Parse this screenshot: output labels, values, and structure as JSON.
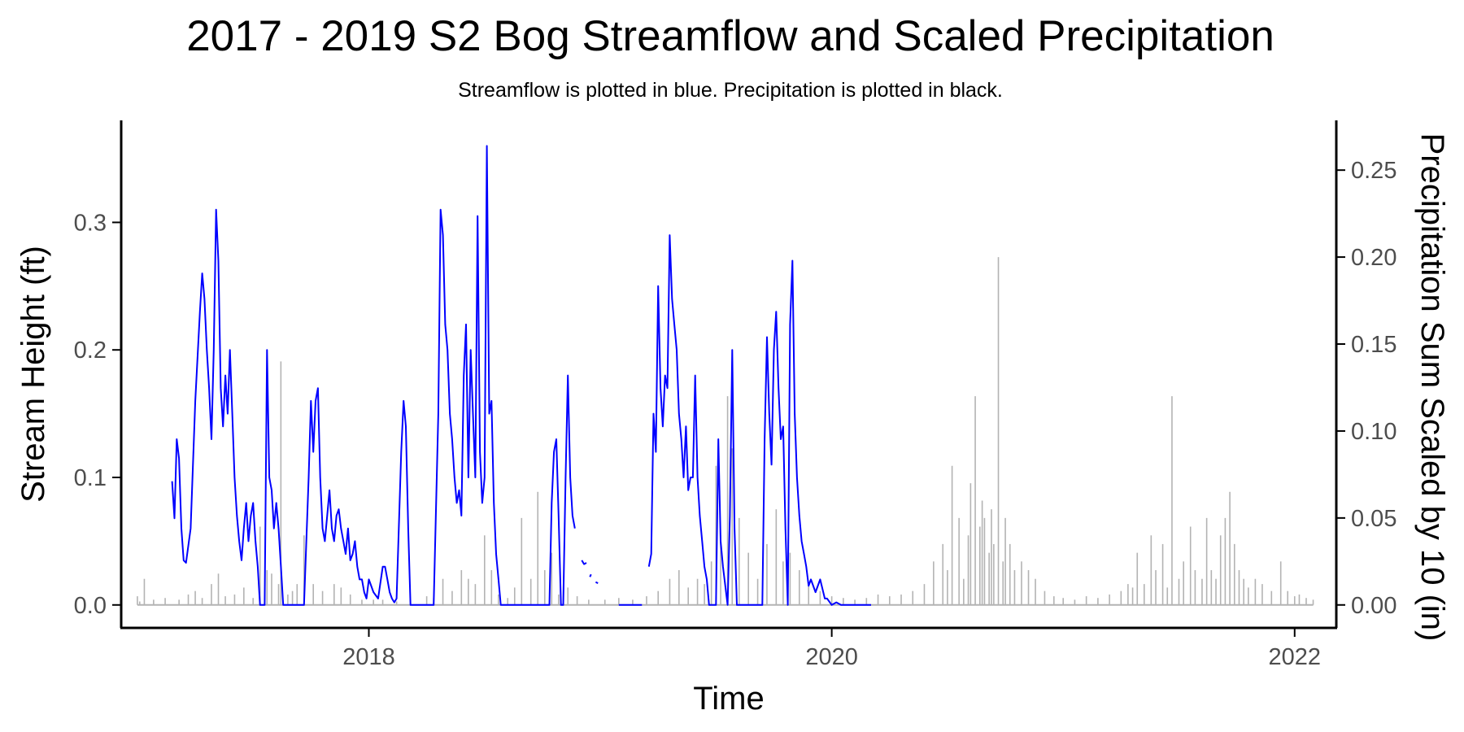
{
  "chart_data": {
    "type": "line",
    "title": "2017 - 2019 S2 Bog Streamflow and Scaled Precipitation",
    "subtitle": "Streamflow is plotted in blue. Precipitation is plotted in black.",
    "xlabel": "Time",
    "ylabel": "Stream Height (ft)",
    "y2label": "Precipitation Sum Scaled by 10 (in)",
    "xlim": [
      2016.93,
      2022.18
    ],
    "ylim": [
      -0.018,
      0.38
    ],
    "y2lim": [
      -0.0132,
      0.2786
    ],
    "x_ticks": [
      2018,
      2020,
      2022
    ],
    "x_tick_labels": [
      "2018",
      "2020",
      "2022"
    ],
    "y_ticks": [
      0.0,
      0.1,
      0.2,
      0.3
    ],
    "y_tick_labels": [
      "0.0",
      "0.1",
      "0.2",
      "0.3"
    ],
    "y2_ticks": [
      0.0,
      0.05,
      0.1,
      0.15,
      0.2,
      0.25
    ],
    "y2_tick_labels": [
      "0.00",
      "0.05",
      "0.10",
      "0.15",
      "0.20",
      "0.25"
    ],
    "grid": false,
    "legend": "none",
    "colors": {
      "streamflow": "#0000ff",
      "precipitation": "#b3b3b3",
      "axis": "#000000"
    },
    "streamflow_segments": [
      [
        [
          2017.15,
          0.097
        ],
        [
          2017.16,
          0.068
        ],
        [
          2017.17,
          0.13
        ],
        [
          2017.18,
          0.115
        ],
        [
          2017.19,
          0.06
        ],
        [
          2017.2,
          0.035
        ],
        [
          2017.21,
          0.033
        ],
        [
          2017.23,
          0.06
        ],
        [
          2017.25,
          0.16
        ],
        [
          2017.27,
          0.23
        ],
        [
          2017.28,
          0.26
        ],
        [
          2017.29,
          0.24
        ],
        [
          2017.3,
          0.2
        ],
        [
          2017.31,
          0.17
        ],
        [
          2017.32,
          0.13
        ],
        [
          2017.33,
          0.2
        ],
        [
          2017.34,
          0.31
        ],
        [
          2017.35,
          0.27
        ],
        [
          2017.36,
          0.17
        ],
        [
          2017.37,
          0.14
        ],
        [
          2017.38,
          0.18
        ],
        [
          2017.39,
          0.15
        ],
        [
          2017.4,
          0.2
        ],
        [
          2017.41,
          0.15
        ],
        [
          2017.42,
          0.1
        ],
        [
          2017.43,
          0.07
        ],
        [
          2017.44,
          0.05
        ],
        [
          2017.45,
          0.035
        ],
        [
          2017.46,
          0.06
        ],
        [
          2017.47,
          0.08
        ],
        [
          2017.48,
          0.05
        ],
        [
          2017.49,
          0.07
        ],
        [
          2017.5,
          0.08
        ],
        [
          2017.51,
          0.05
        ],
        [
          2017.52,
          0.03
        ],
        [
          2017.53,
          0.0
        ],
        [
          2017.55,
          0.0
        ],
        [
          2017.56,
          0.2
        ],
        [
          2017.57,
          0.1
        ],
        [
          2017.58,
          0.09
        ],
        [
          2017.59,
          0.06
        ],
        [
          2017.6,
          0.08
        ],
        [
          2017.61,
          0.06
        ],
        [
          2017.62,
          0.03
        ],
        [
          2017.63,
          0.0
        ],
        [
          2017.7,
          0.0
        ],
        [
          2017.72,
          0.0
        ],
        [
          2017.74,
          0.1
        ],
        [
          2017.75,
          0.16
        ],
        [
          2017.76,
          0.12
        ],
        [
          2017.77,
          0.16
        ],
        [
          2017.78,
          0.17
        ],
        [
          2017.79,
          0.1
        ],
        [
          2017.8,
          0.06
        ],
        [
          2017.81,
          0.05
        ],
        [
          2017.82,
          0.07
        ],
        [
          2017.83,
          0.09
        ],
        [
          2017.84,
          0.06
        ],
        [
          2017.85,
          0.05
        ],
        [
          2017.86,
          0.07
        ],
        [
          2017.87,
          0.075
        ],
        [
          2017.88,
          0.06
        ],
        [
          2017.89,
          0.05
        ],
        [
          2017.9,
          0.04
        ],
        [
          2017.91,
          0.06
        ],
        [
          2017.92,
          0.035
        ],
        [
          2017.93,
          0.04
        ],
        [
          2017.94,
          0.05
        ],
        [
          2017.95,
          0.03
        ],
        [
          2017.96,
          0.02
        ],
        [
          2017.97,
          0.02
        ],
        [
          2017.98,
          0.01
        ],
        [
          2017.99,
          0.005
        ],
        [
          2018.0,
          0.02
        ],
        [
          2018.02,
          0.01
        ],
        [
          2018.04,
          0.005
        ],
        [
          2018.06,
          0.03
        ],
        [
          2018.07,
          0.03
        ],
        [
          2018.08,
          0.02
        ],
        [
          2018.09,
          0.01
        ],
        [
          2018.1,
          0.005
        ],
        [
          2018.11,
          0.002
        ],
        [
          2018.12,
          0.005
        ],
        [
          2018.14,
          0.12
        ],
        [
          2018.15,
          0.16
        ],
        [
          2018.16,
          0.14
        ],
        [
          2018.17,
          0.06
        ],
        [
          2018.18,
          0.0
        ],
        [
          2018.25,
          0.0
        ],
        [
          2018.28,
          0.0
        ],
        [
          2018.3,
          0.15
        ],
        [
          2018.31,
          0.31
        ],
        [
          2018.32,
          0.29
        ],
        [
          2018.33,
          0.22
        ],
        [
          2018.34,
          0.2
        ],
        [
          2018.35,
          0.15
        ],
        [
          2018.36,
          0.13
        ],
        [
          2018.37,
          0.1
        ],
        [
          2018.38,
          0.08
        ],
        [
          2018.39,
          0.09
        ],
        [
          2018.4,
          0.07
        ],
        [
          2018.41,
          0.18
        ],
        [
          2018.42,
          0.22
        ],
        [
          2018.43,
          0.1
        ],
        [
          2018.44,
          0.2
        ],
        [
          2018.45,
          0.15
        ],
        [
          2018.46,
          0.1
        ],
        [
          2018.47,
          0.305
        ],
        [
          2018.48,
          0.12
        ],
        [
          2018.49,
          0.08
        ],
        [
          2018.5,
          0.1
        ],
        [
          2018.51,
          0.36
        ],
        [
          2018.52,
          0.15
        ],
        [
          2018.53,
          0.16
        ],
        [
          2018.54,
          0.08
        ],
        [
          2018.55,
          0.04
        ],
        [
          2018.56,
          0.02
        ],
        [
          2018.57,
          0.0
        ],
        [
          2018.78,
          0.0
        ],
        [
          2018.79,
          0.08
        ],
        [
          2018.8,
          0.12
        ],
        [
          2018.81,
          0.13
        ],
        [
          2018.82,
          0.07
        ],
        [
          2018.83,
          0.0
        ],
        [
          2018.84,
          0.0
        ],
        [
          2018.85,
          0.1
        ],
        [
          2018.86,
          0.18
        ],
        [
          2018.87,
          0.1
        ],
        [
          2018.88,
          0.07
        ],
        [
          2018.89,
          0.06
        ]
      ],
      [
        [
          2018.92,
          0.035
        ],
        [
          2018.93,
          0.032
        ],
        [
          2018.94,
          0.033
        ]
      ],
      [
        [
          2018.955,
          0.022
        ],
        [
          2018.96,
          0.024
        ]
      ],
      [
        [
          2018.98,
          0.018
        ],
        [
          2018.99,
          0.017
        ]
      ],
      [
        [
          2019.08,
          0.0
        ],
        [
          2019.18,
          0.0
        ]
      ],
      [
        [
          2019.21,
          0.03
        ],
        [
          2019.22,
          0.04
        ],
        [
          2019.23,
          0.15
        ],
        [
          2019.24,
          0.12
        ],
        [
          2019.25,
          0.25
        ],
        [
          2019.26,
          0.17
        ],
        [
          2019.27,
          0.14
        ],
        [
          2019.28,
          0.18
        ],
        [
          2019.29,
          0.17
        ],
        [
          2019.3,
          0.29
        ],
        [
          2019.31,
          0.24
        ],
        [
          2019.32,
          0.22
        ],
        [
          2019.33,
          0.2
        ],
        [
          2019.34,
          0.15
        ],
        [
          2019.35,
          0.13
        ],
        [
          2019.36,
          0.1
        ],
        [
          2019.37,
          0.14
        ],
        [
          2019.38,
          0.09
        ],
        [
          2019.39,
          0.1
        ],
        [
          2019.4,
          0.1
        ],
        [
          2019.41,
          0.18
        ],
        [
          2019.42,
          0.1
        ],
        [
          2019.43,
          0.07
        ],
        [
          2019.44,
          0.05
        ],
        [
          2019.45,
          0.03
        ],
        [
          2019.46,
          0.02
        ],
        [
          2019.47,
          0.0
        ],
        [
          2019.5,
          0.0
        ],
        [
          2019.51,
          0.13
        ],
        [
          2019.52,
          0.05
        ],
        [
          2019.53,
          0.03
        ],
        [
          2019.55,
          0.0
        ],
        [
          2019.56,
          0.07
        ],
        [
          2019.57,
          0.2
        ],
        [
          2019.58,
          0.06
        ],
        [
          2019.59,
          0.0
        ],
        [
          2019.7,
          0.0
        ],
        [
          2019.71,
          0.13
        ],
        [
          2019.72,
          0.21
        ],
        [
          2019.73,
          0.15
        ],
        [
          2019.74,
          0.11
        ],
        [
          2019.75,
          0.2
        ],
        [
          2019.76,
          0.23
        ],
        [
          2019.77,
          0.17
        ],
        [
          2019.78,
          0.13
        ],
        [
          2019.79,
          0.14
        ],
        [
          2019.8,
          0.06
        ],
        [
          2019.81,
          0.0
        ],
        [
          2019.82,
          0.22
        ],
        [
          2019.83,
          0.27
        ],
        [
          2019.84,
          0.15
        ],
        [
          2019.85,
          0.1
        ],
        [
          2019.86,
          0.07
        ],
        [
          2019.87,
          0.05
        ],
        [
          2019.88,
          0.04
        ],
        [
          2019.89,
          0.03
        ],
        [
          2019.9,
          0.015
        ],
        [
          2019.91,
          0.02
        ],
        [
          2019.93,
          0.01
        ],
        [
          2019.95,
          0.02
        ],
        [
          2019.97,
          0.005
        ],
        [
          2019.98,
          0.005
        ],
        [
          2020.0,
          0.0
        ],
        [
          2020.02,
          0.002
        ],
        [
          2020.04,
          0.0
        ],
        [
          2020.17,
          0.0
        ]
      ]
    ],
    "precipitation_spikes": [
      [
        2017.0,
        0.005
      ],
      [
        2017.01,
        0.002
      ],
      [
        2017.03,
        0.015
      ],
      [
        2017.07,
        0.003
      ],
      [
        2017.12,
        0.004
      ],
      [
        2017.18,
        0.003
      ],
      [
        2017.22,
        0.006
      ],
      [
        2017.25,
        0.008
      ],
      [
        2017.28,
        0.004
      ],
      [
        2017.32,
        0.012
      ],
      [
        2017.35,
        0.018
      ],
      [
        2017.38,
        0.005
      ],
      [
        2017.42,
        0.006
      ],
      [
        2017.46,
        0.01
      ],
      [
        2017.5,
        0.004
      ],
      [
        2017.53,
        0.045
      ],
      [
        2017.56,
        0.02
      ],
      [
        2017.58,
        0.018
      ],
      [
        2017.61,
        0.012
      ],
      [
        2017.62,
        0.14
      ],
      [
        2017.65,
        0.006
      ],
      [
        2017.67,
        0.008
      ],
      [
        2017.69,
        0.012
      ],
      [
        2017.72,
        0.04
      ],
      [
        2017.76,
        0.012
      ],
      [
        2017.8,
        0.008
      ],
      [
        2017.85,
        0.012
      ],
      [
        2017.88,
        0.01
      ],
      [
        2017.92,
        0.006
      ],
      [
        2017.97,
        0.003
      ],
      [
        2018.02,
        0.003
      ],
      [
        2018.06,
        0.003
      ],
      [
        2018.12,
        0.002
      ],
      [
        2018.18,
        0.003
      ],
      [
        2018.25,
        0.005
      ],
      [
        2018.28,
        0.004
      ],
      [
        2018.32,
        0.015
      ],
      [
        2018.36,
        0.008
      ],
      [
        2018.4,
        0.02
      ],
      [
        2018.43,
        0.015
      ],
      [
        2018.46,
        0.012
      ],
      [
        2018.5,
        0.04
      ],
      [
        2018.53,
        0.02
      ],
      [
        2018.56,
        0.006
      ],
      [
        2018.6,
        0.004
      ],
      [
        2018.63,
        0.01
      ],
      [
        2018.66,
        0.05
      ],
      [
        2018.7,
        0.015
      ],
      [
        2018.73,
        0.065
      ],
      [
        2018.76,
        0.02
      ],
      [
        2018.79,
        0.03
      ],
      [
        2018.82,
        0.006
      ],
      [
        2018.86,
        0.01
      ],
      [
        2018.9,
        0.005
      ],
      [
        2018.95,
        0.003
      ],
      [
        2019.02,
        0.003
      ],
      [
        2019.08,
        0.004
      ],
      [
        2019.14,
        0.003
      ],
      [
        2019.2,
        0.005
      ],
      [
        2019.25,
        0.008
      ],
      [
        2019.3,
        0.015
      ],
      [
        2019.34,
        0.02
      ],
      [
        2019.38,
        0.01
      ],
      [
        2019.42,
        0.015
      ],
      [
        2019.45,
        0.012
      ],
      [
        2019.48,
        0.025
      ],
      [
        2019.5,
        0.08
      ],
      [
        2019.52,
        0.04
      ],
      [
        2019.55,
        0.12
      ],
      [
        2019.57,
        0.09
      ],
      [
        2019.6,
        0.05
      ],
      [
        2019.64,
        0.03
      ],
      [
        2019.68,
        0.015
      ],
      [
        2019.72,
        0.035
      ],
      [
        2019.76,
        0.055
      ],
      [
        2019.79,
        0.025
      ],
      [
        2019.82,
        0.03
      ],
      [
        2019.86,
        0.02
      ],
      [
        2019.9,
        0.012
      ],
      [
        2019.95,
        0.008
      ],
      [
        2020.0,
        0.005
      ],
      [
        2020.05,
        0.004
      ],
      [
        2020.1,
        0.003
      ],
      [
        2020.15,
        0.004
      ],
      [
        2020.2,
        0.006
      ],
      [
        2020.25,
        0.005
      ],
      [
        2020.3,
        0.006
      ],
      [
        2020.35,
        0.008
      ],
      [
        2020.4,
        0.012
      ],
      [
        2020.44,
        0.025
      ],
      [
        2020.48,
        0.035
      ],
      [
        2020.5,
        0.02
      ],
      [
        2020.52,
        0.08
      ],
      [
        2020.55,
        0.05
      ],
      [
        2020.57,
        0.015
      ],
      [
        2020.59,
        0.04
      ],
      [
        2020.6,
        0.07
      ],
      [
        2020.62,
        0.12
      ],
      [
        2020.64,
        0.045
      ],
      [
        2020.65,
        0.06
      ],
      [
        2020.66,
        0.05
      ],
      [
        2020.68,
        0.03
      ],
      [
        2020.69,
        0.055
      ],
      [
        2020.7,
        0.035
      ],
      [
        2020.72,
        0.2
      ],
      [
        2020.74,
        0.025
      ],
      [
        2020.75,
        0.05
      ],
      [
        2020.77,
        0.035
      ],
      [
        2020.79,
        0.02
      ],
      [
        2020.82,
        0.025
      ],
      [
        2020.85,
        0.02
      ],
      [
        2020.88,
        0.015
      ],
      [
        2020.92,
        0.008
      ],
      [
        2020.96,
        0.005
      ],
      [
        2021.0,
        0.004
      ],
      [
        2021.05,
        0.003
      ],
      [
        2021.1,
        0.005
      ],
      [
        2021.15,
        0.004
      ],
      [
        2021.2,
        0.006
      ],
      [
        2021.25,
        0.008
      ],
      [
        2021.28,
        0.012
      ],
      [
        2021.3,
        0.01
      ],
      [
        2021.32,
        0.03
      ],
      [
        2021.35,
        0.012
      ],
      [
        2021.38,
        0.04
      ],
      [
        2021.4,
        0.02
      ],
      [
        2021.43,
        0.035
      ],
      [
        2021.45,
        0.01
      ],
      [
        2021.47,
        0.12
      ],
      [
        2021.5,
        0.015
      ],
      [
        2021.52,
        0.025
      ],
      [
        2021.55,
        0.045
      ],
      [
        2021.57,
        0.02
      ],
      [
        2021.6,
        0.015
      ],
      [
        2021.62,
        0.05
      ],
      [
        2021.64,
        0.02
      ],
      [
        2021.66,
        0.015
      ],
      [
        2021.68,
        0.04
      ],
      [
        2021.7,
        0.05
      ],
      [
        2021.72,
        0.065
      ],
      [
        2021.74,
        0.035
      ],
      [
        2021.76,
        0.02
      ],
      [
        2021.78,
        0.015
      ],
      [
        2021.8,
        0.01
      ],
      [
        2021.83,
        0.015
      ],
      [
        2021.86,
        0.012
      ],
      [
        2021.9,
        0.008
      ],
      [
        2021.94,
        0.025
      ],
      [
        2021.97,
        0.008
      ],
      [
        2022.0,
        0.005
      ],
      [
        2022.02,
        0.006
      ],
      [
        2022.05,
        0.004
      ],
      [
        2022.08,
        0.003
      ]
    ]
  }
}
